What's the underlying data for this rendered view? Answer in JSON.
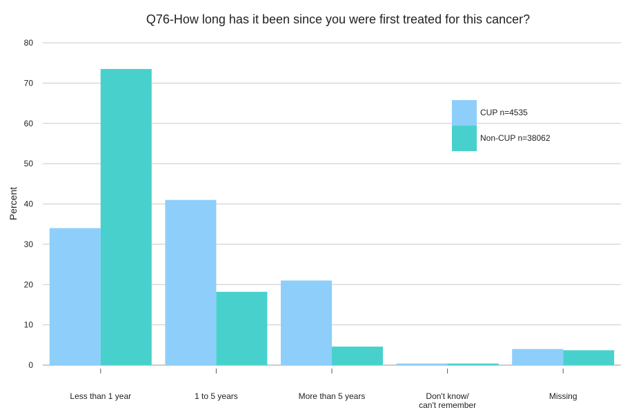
{
  "chart_data": {
    "type": "bar",
    "title": "Q76-How long has it been since you were first treated for this cancer?",
    "ylabel": "Percent",
    "xlabel": "",
    "ylim": [
      0,
      80
    ],
    "yticks": [
      0,
      10,
      20,
      30,
      40,
      50,
      60,
      70,
      80
    ],
    "grid": true,
    "legend_position": "top-right",
    "categories": [
      [
        "Less than 1 year"
      ],
      [
        "1 to 5 years"
      ],
      [
        "More than 5 years"
      ],
      [
        "Don't know/",
        "can't remember"
      ],
      [
        "Missing"
      ]
    ],
    "series": [
      {
        "name": "CUP n=4535",
        "color": "#8ecefa",
        "values": [
          34,
          41,
          21,
          0.4,
          4
        ]
      },
      {
        "name": "Non-CUP n=38062",
        "color": "#48d1cc",
        "values": [
          73.5,
          18.2,
          4.6,
          0.4,
          3.7
        ]
      }
    ]
  }
}
